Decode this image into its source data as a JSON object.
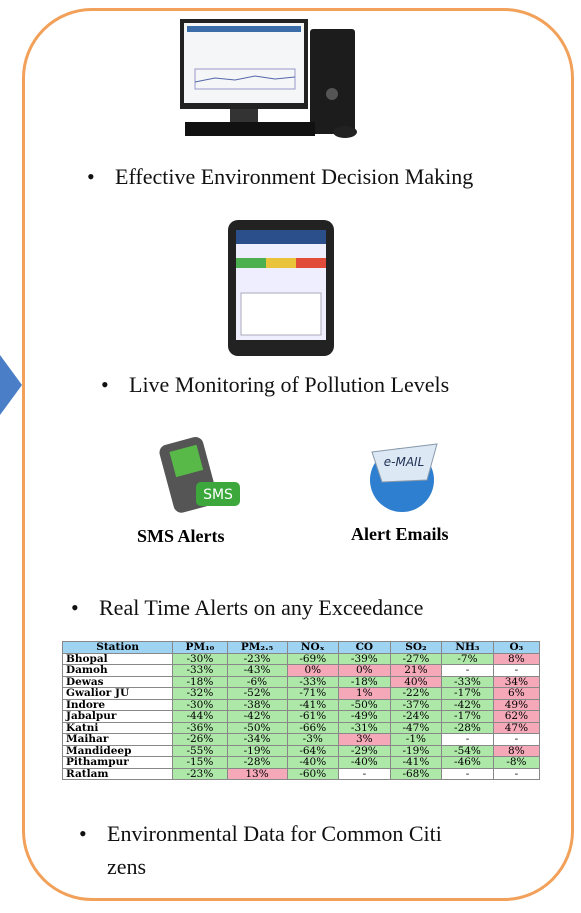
{
  "bullets": [
    "Effective Environment Decision Making",
    "Live Monitoring of Pollution Levels",
    "Real Time Alerts on any Exceedance"
  ],
  "last_bullet": [
    "Environmental Data for Common Citi",
    "zens"
  ],
  "icons": {
    "sms_badge": "SMS",
    "email_badge": "e-MAIL",
    "sms_label": "SMS Alerts",
    "email_label": "Alert Emails"
  },
  "table": {
    "header": [
      "Station",
      "PM₁₀",
      "PM₂.₅",
      "NOₓ",
      "CO",
      "SO₂",
      "NH₃",
      "O₃"
    ],
    "rows": [
      [
        "Bhopal",
        "-30%",
        "-23%",
        "-69%",
        "-39%",
        "-27%",
        "-7%",
        "8%"
      ],
      [
        "Damoh",
        "-33%",
        "-43%",
        "0%",
        "0%",
        "21%",
        "-",
        "-"
      ],
      [
        "Dewas",
        "-18%",
        "-6%",
        "-33%",
        "-18%",
        "40%",
        "-33%",
        "34%"
      ],
      [
        "Gwalior JU",
        "-32%",
        "-52%",
        "-71%",
        "1%",
        "-22%",
        "-17%",
        "6%"
      ],
      [
        "Indore",
        "-30%",
        "-38%",
        "-41%",
        "-50%",
        "-37%",
        "-42%",
        "49%"
      ],
      [
        "Jabalpur",
        "-44%",
        "-42%",
        "-61%",
        "-49%",
        "-24%",
        "-17%",
        "62%"
      ],
      [
        "Katni",
        "-36%",
        "-50%",
        "-66%",
        "-31%",
        "-47%",
        "-28%",
        "47%"
      ],
      [
        "Maihar",
        "-26%",
        "-34%",
        "-3%",
        "3%",
        "-1%",
        "-",
        "-"
      ],
      [
        "Mandideep",
        "-55%",
        "-19%",
        "-64%",
        "-29%",
        "-19%",
        "-54%",
        "8%"
      ],
      [
        "Pithampur",
        "-15%",
        "-28%",
        "-40%",
        "-40%",
        "-41%",
        "-46%",
        "-8%"
      ],
      [
        "Ratlam",
        "-23%",
        "13%",
        "-60%",
        "-",
        "-68%",
        "-",
        "-"
      ]
    ]
  }
}
